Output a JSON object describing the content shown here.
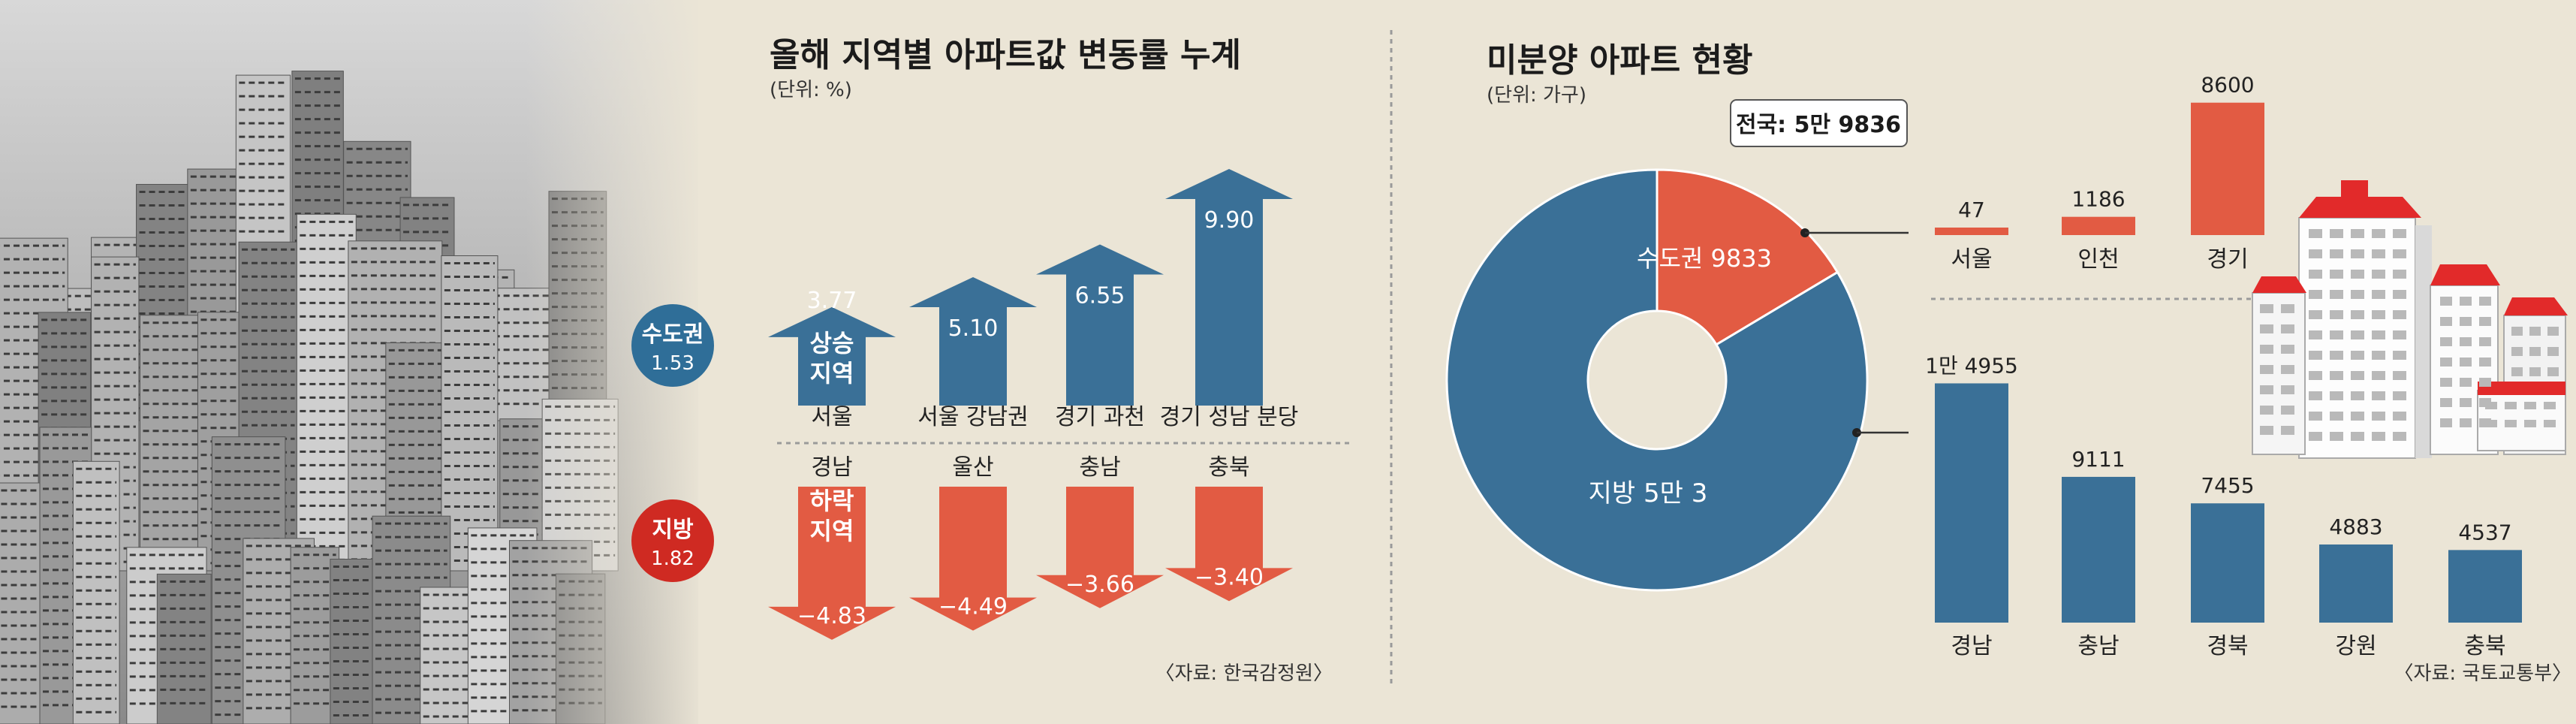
{
  "colors": {
    "up": "#3a7097",
    "down": "#e25b43",
    "bg": "#ebe5d6",
    "photo": "#9a9a9a"
  },
  "photo": {
    "icon": "apartment-city-photo"
  },
  "left_panel": {
    "title": "올해 지역별 아파트값 변동률 누계",
    "unit": "(단위: %)",
    "source": "〈자료: 한국감정원〉",
    "capital_badge": {
      "label": "수도권",
      "value": "1.53"
    },
    "local_badge": {
      "label": "지방",
      "value": "1.82"
    },
    "up_tag": [
      "상승",
      "지역"
    ],
    "down_tag": [
      "하락",
      "지역"
    ]
  },
  "right_panel": {
    "title": "미분양 아파트 현황",
    "unit": "(단위: 가구)",
    "total": "전국: 5만 9836",
    "source": "〈자료: 국토교통부〉",
    "icon": "apartment-buildings-illustration"
  },
  "chart_data": [
    {
      "type": "bar",
      "title": "올해 지역별 아파트값 변동률 누계",
      "unit": "%",
      "series": [
        {
          "name": "상승 지역",
          "categories": [
            "서울",
            "서울 강남권",
            "경기 과천",
            "경기 성남 분당"
          ],
          "values": [
            3.77,
            5.1,
            6.55,
            9.9
          ],
          "labels": [
            "3.77",
            "5.10",
            "6.55",
            "9.90"
          ]
        },
        {
          "name": "하락 지역",
          "categories": [
            "경남",
            "울산",
            "충남",
            "충북"
          ],
          "values": [
            -4.83,
            -4.49,
            -3.66,
            -3.4
          ],
          "labels": [
            "−4.83",
            "−4.49",
            "−3.66",
            "−3.40"
          ]
        }
      ],
      "groups": [
        {
          "label": "수도권",
          "value": 1.53
        },
        {
          "label": "지방",
          "value": 1.82
        }
      ]
    },
    {
      "type": "pie",
      "title": "미분양 아파트 현황",
      "unit": "가구",
      "total": 59836,
      "slices": [
        {
          "label": "수도권 9833",
          "value": 9833
        },
        {
          "label": "지방 5만 3",
          "value": 50003
        }
      ]
    },
    {
      "type": "bar",
      "title": "수도권",
      "unit": "가구",
      "categories": [
        "서울",
        "인천",
        "경기"
      ],
      "values": [
        47,
        1186,
        8600
      ],
      "labels": [
        "47",
        "1186",
        "8600"
      ]
    },
    {
      "type": "bar",
      "title": "지방",
      "unit": "가구",
      "categories": [
        "경남",
        "충남",
        "경북",
        "강원",
        "충북"
      ],
      "values": [
        14955,
        9111,
        7455,
        4883,
        4537
      ],
      "labels": [
        "1만 4955",
        "9111",
        "7455",
        "4883",
        "4537"
      ]
    }
  ]
}
